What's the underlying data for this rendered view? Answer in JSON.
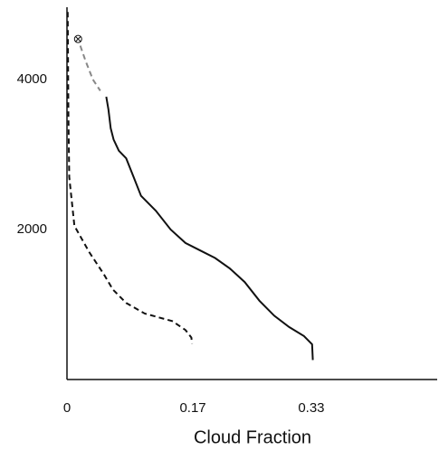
{
  "chart_data": {
    "type": "line",
    "xlabel": "Cloud Fraction",
    "xlim": [
      0,
      0.5
    ],
    "xticks": [
      0,
      0.17,
      0.33
    ],
    "ylim": [
      0,
      5000
    ],
    "yticks": [
      2000,
      4000
    ],
    "grid": false,
    "series": [
      {
        "color": "#111111",
        "dash": "solid",
        "x": [
          0.053,
          0.056,
          0.059,
          0.063,
          0.07,
          0.08,
          0.09,
          0.1,
          0.12,
          0.14,
          0.16,
          0.18,
          0.2,
          0.22,
          0.24,
          0.26,
          0.28,
          0.3,
          0.32,
          0.331,
          0.332
        ],
        "values": [
          3770,
          3600,
          3350,
          3200,
          3050,
          2950,
          2700,
          2450,
          2250,
          2000,
          1820,
          1720,
          1620,
          1480,
          1300,
          1050,
          850,
          700,
          580,
          470,
          260
        ]
      },
      {
        "color": "#111111",
        "dash": "dashed",
        "x": [
          0.001,
          0.002,
          0.003,
          0.01,
          0.03,
          0.05,
          0.062,
          0.08,
          0.105,
          0.142,
          0.16,
          0.168,
          0.169
        ],
        "values": [
          4900,
          3500,
          2700,
          2050,
          1700,
          1400,
          1200,
          1020,
          880,
          780,
          660,
          560,
          480
        ]
      },
      {
        "color": "#888888",
        "dash": "dashed",
        "x": [
          0.018,
          0.025,
          0.035,
          0.045
        ],
        "values": [
          4450,
          4250,
          4000,
          3850
        ]
      },
      {
        "color": "#111111",
        "marker": "circle-x",
        "x": [
          0.015
        ],
        "values": [
          4540
        ]
      }
    ]
  }
}
